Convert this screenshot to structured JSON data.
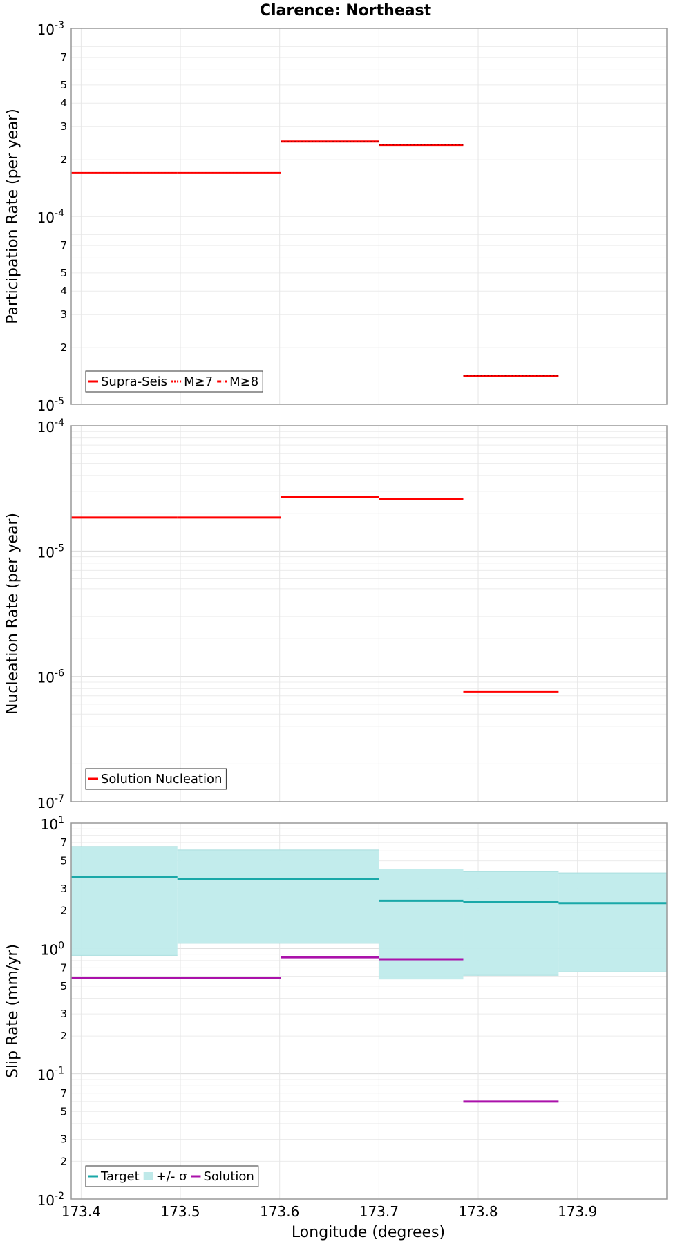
{
  "chart_data": {
    "type": "line",
    "title": "Clarence: Northeast",
    "xlabel": "Longitude (degrees)",
    "xlim": [
      173.39,
      173.99
    ],
    "x_ticks": [
      "173.4",
      "173.5",
      "173.6",
      "173.7",
      "173.8",
      "173.9"
    ],
    "panels": [
      {
        "ylabel": "Participation Rate (per year)",
        "yscale": "log",
        "ylim": [
          1e-05,
          0.001
        ],
        "y_major_ticks": [
          {
            "base": "10",
            "exp": "-5"
          },
          {
            "base": "10",
            "exp": "-4"
          },
          {
            "base": "10",
            "exp": "-3"
          }
        ],
        "y_minor_labels": [
          "2",
          "3",
          "4",
          "5",
          "7"
        ],
        "legend": {
          "placement": "bottom-left",
          "entries": [
            {
              "label": "Supra-Seis",
              "color": "#ff0000",
              "style": "solid"
            },
            {
              "label": "M≥7",
              "color": "#ff0000",
              "style": "dotted"
            },
            {
              "label": "M≥8",
              "color": "#ff0000",
              "style": "dashdot"
            }
          ]
        },
        "series": [
          {
            "name": "Supra-Seis",
            "color": "#ff0000",
            "segments": [
              {
                "x0": 173.39,
                "x1": 173.497,
                "y": 0.00017
              },
              {
                "x0": 173.497,
                "x1": 173.601,
                "y": 0.00017
              },
              {
                "x0": 173.601,
                "x1": 173.7,
                "y": 0.00025
              },
              {
                "x0": 173.7,
                "x1": 173.785,
                "y": 0.00024
              },
              {
                "x0": 173.785,
                "x1": 173.881,
                "y": 1.42e-05
              }
            ]
          }
        ]
      },
      {
        "ylabel": "Nucleation Rate (per year)",
        "yscale": "log",
        "ylim": [
          1e-07,
          0.0001
        ],
        "y_major_ticks": [
          {
            "base": "10",
            "exp": "-7"
          },
          {
            "base": "10",
            "exp": "-6"
          },
          {
            "base": "10",
            "exp": "-5"
          },
          {
            "base": "10",
            "exp": "-4"
          }
        ],
        "y_minor_labels": [],
        "legend": {
          "placement": "bottom-left",
          "entries": [
            {
              "label": "Solution Nucleation",
              "color": "#ff0000",
              "style": "solid"
            }
          ]
        },
        "series": [
          {
            "name": "Solution Nucleation",
            "color": "#ff0000",
            "segments": [
              {
                "x0": 173.39,
                "x1": 173.497,
                "y": 1.85e-05
              },
              {
                "x0": 173.497,
                "x1": 173.601,
                "y": 1.85e-05
              },
              {
                "x0": 173.601,
                "x1": 173.7,
                "y": 2.7e-05
              },
              {
                "x0": 173.7,
                "x1": 173.785,
                "y": 2.6e-05
              },
              {
                "x0": 173.785,
                "x1": 173.881,
                "y": 7.5e-07
              }
            ]
          }
        ]
      },
      {
        "ylabel": "Slip Rate (mm/yr)",
        "yscale": "log",
        "ylim": [
          0.01,
          10
        ],
        "y_major_ticks": [
          {
            "base": "10",
            "exp": "-2"
          },
          {
            "base": "10",
            "exp": "-1"
          },
          {
            "base": "10",
            "exp": "0"
          },
          {
            "base": "10",
            "exp": "1"
          }
        ],
        "y_minor_labels": [
          "2",
          "3",
          "5",
          "7"
        ],
        "legend": {
          "placement": "bottom-left",
          "entries": [
            {
              "label": "Target",
              "color": "#1aa8a8",
              "style": "solid"
            },
            {
              "label": "+/- σ",
              "color": "#bfe9e9",
              "style": "band"
            },
            {
              "label": "Solution",
              "color": "#aa11aa",
              "style": "solid"
            }
          ]
        },
        "bands": [
          {
            "name": "+/- σ",
            "color": "#bfebeb",
            "segments": [
              {
                "x0": 173.39,
                "x1": 173.497,
                "lo": 0.88,
                "hi": 6.5
              },
              {
                "x0": 173.497,
                "x1": 173.7,
                "lo": 1.1,
                "hi": 6.1
              },
              {
                "x0": 173.7,
                "x1": 173.785,
                "lo": 0.57,
                "hi": 4.3
              },
              {
                "x0": 173.785,
                "x1": 173.881,
                "lo": 0.61,
                "hi": 4.1
              },
              {
                "x0": 173.881,
                "x1": 173.99,
                "lo": 0.65,
                "hi": 4.0
              }
            ]
          }
        ],
        "series": [
          {
            "name": "Target",
            "color": "#1aa8a8",
            "segments": [
              {
                "x0": 173.39,
                "x1": 173.497,
                "y": 3.7
              },
              {
                "x0": 173.497,
                "x1": 173.7,
                "y": 3.6
              },
              {
                "x0": 173.7,
                "x1": 173.785,
                "y": 2.4
              },
              {
                "x0": 173.785,
                "x1": 173.881,
                "y": 2.35
              },
              {
                "x0": 173.881,
                "x1": 173.99,
                "y": 2.3
              }
            ]
          },
          {
            "name": "Solution",
            "color": "#aa11aa",
            "segments": [
              {
                "x0": 173.39,
                "x1": 173.601,
                "y": 0.58
              },
              {
                "x0": 173.601,
                "x1": 173.7,
                "y": 0.85
              },
              {
                "x0": 173.7,
                "x1": 173.785,
                "y": 0.82
              },
              {
                "x0": 173.785,
                "x1": 173.881,
                "y": 0.06
              }
            ]
          }
        ]
      }
    ]
  }
}
